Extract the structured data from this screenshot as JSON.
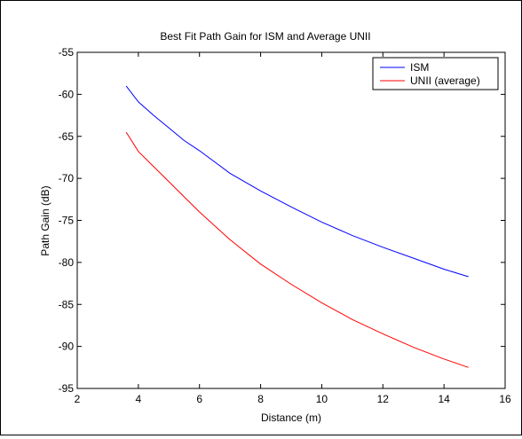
{
  "chart_data": {
    "type": "line",
    "title": "Best Fit Path Gain for ISM and Average UNII",
    "xlabel": "Distance (m)",
    "ylabel": "Path Gain (dB)",
    "xlim": [
      2,
      16
    ],
    "ylim": [
      -95,
      -55
    ],
    "xticks": [
      2,
      4,
      6,
      8,
      10,
      12,
      14,
      16
    ],
    "yticks": [
      -95,
      -90,
      -85,
      -80,
      -75,
      -70,
      -65,
      -60,
      -55
    ],
    "grid": false,
    "legend_position": "top-right",
    "series": [
      {
        "name": "ISM",
        "color": "#0000ff",
        "x": [
          3.6,
          4.0,
          4.5,
          5.0,
          5.5,
          6.0,
          7.0,
          8.0,
          9.0,
          10.0,
          11.0,
          12.0,
          13.0,
          14.0,
          14.8
        ],
        "y": [
          -59.0,
          -60.9,
          -62.5,
          -64.0,
          -65.5,
          -66.7,
          -69.4,
          -71.5,
          -73.4,
          -75.2,
          -76.8,
          -78.2,
          -79.5,
          -80.8,
          -81.7
        ]
      },
      {
        "name": "UNII (average)",
        "color": "#ff0000",
        "x": [
          3.6,
          4.0,
          4.5,
          5.0,
          5.5,
          6.0,
          7.0,
          8.0,
          9.0,
          10.0,
          11.0,
          12.0,
          13.0,
          14.0,
          14.8
        ],
        "y": [
          -64.5,
          -66.8,
          -68.6,
          -70.4,
          -72.2,
          -74.0,
          -77.3,
          -80.2,
          -82.6,
          -84.8,
          -86.8,
          -88.5,
          -90.1,
          -91.5,
          -92.5
        ]
      }
    ]
  }
}
